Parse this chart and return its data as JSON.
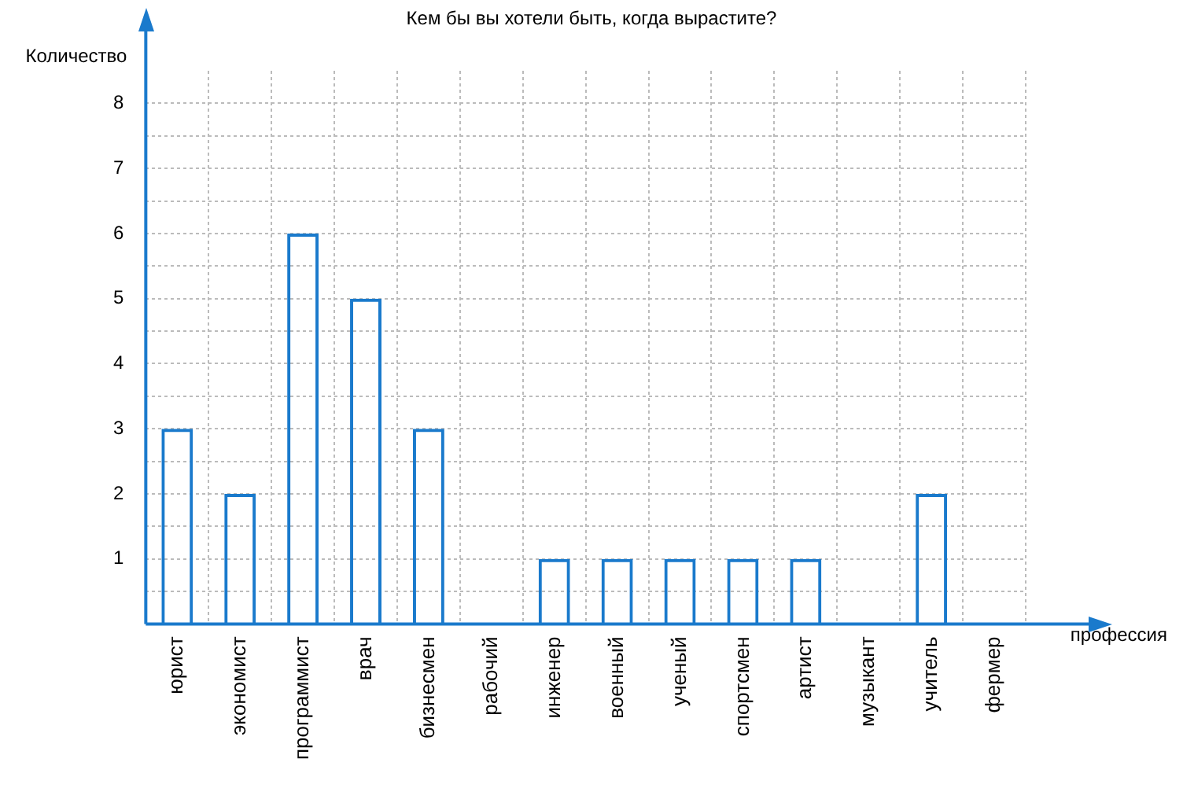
{
  "chart_data": {
    "type": "bar",
    "title": "Кем бы вы хотели быть, когда вырастите?",
    "xlabel": "профессия",
    "ylabel": "Количество",
    "categories": [
      "юрист",
      "экономист",
      "программист",
      "врач",
      "бизнесмен",
      "рабочий",
      "инженер",
      "военный",
      "ученый",
      "спортсмен",
      "артист",
      "музыкант",
      "учитель",
      "фермер"
    ],
    "values": [
      3,
      2,
      6,
      5,
      3,
      0,
      1,
      1,
      1,
      1,
      1,
      0,
      2,
      0
    ],
    "color": "#1a7acc",
    "ylim": [
      0,
      8.5
    ],
    "yticks": [
      {
        "value": 0,
        "label": null
      },
      {
        "value": 0.5,
        "label": null
      },
      1,
      {
        "value": 1.5,
        "label": null
      },
      2,
      {
        "value": 2.5,
        "label": null
      },
      3,
      {
        "value": 3.5,
        "label": null
      },
      4,
      {
        "value": 4.5,
        "label": null
      },
      5,
      {
        "value": 5.5,
        "label": null
      },
      6,
      {
        "value": 6.5,
        "label": null
      },
      7,
      {
        "value": 7.5,
        "label": null
      },
      8
    ],
    "grid": true,
    "legend": false
  }
}
